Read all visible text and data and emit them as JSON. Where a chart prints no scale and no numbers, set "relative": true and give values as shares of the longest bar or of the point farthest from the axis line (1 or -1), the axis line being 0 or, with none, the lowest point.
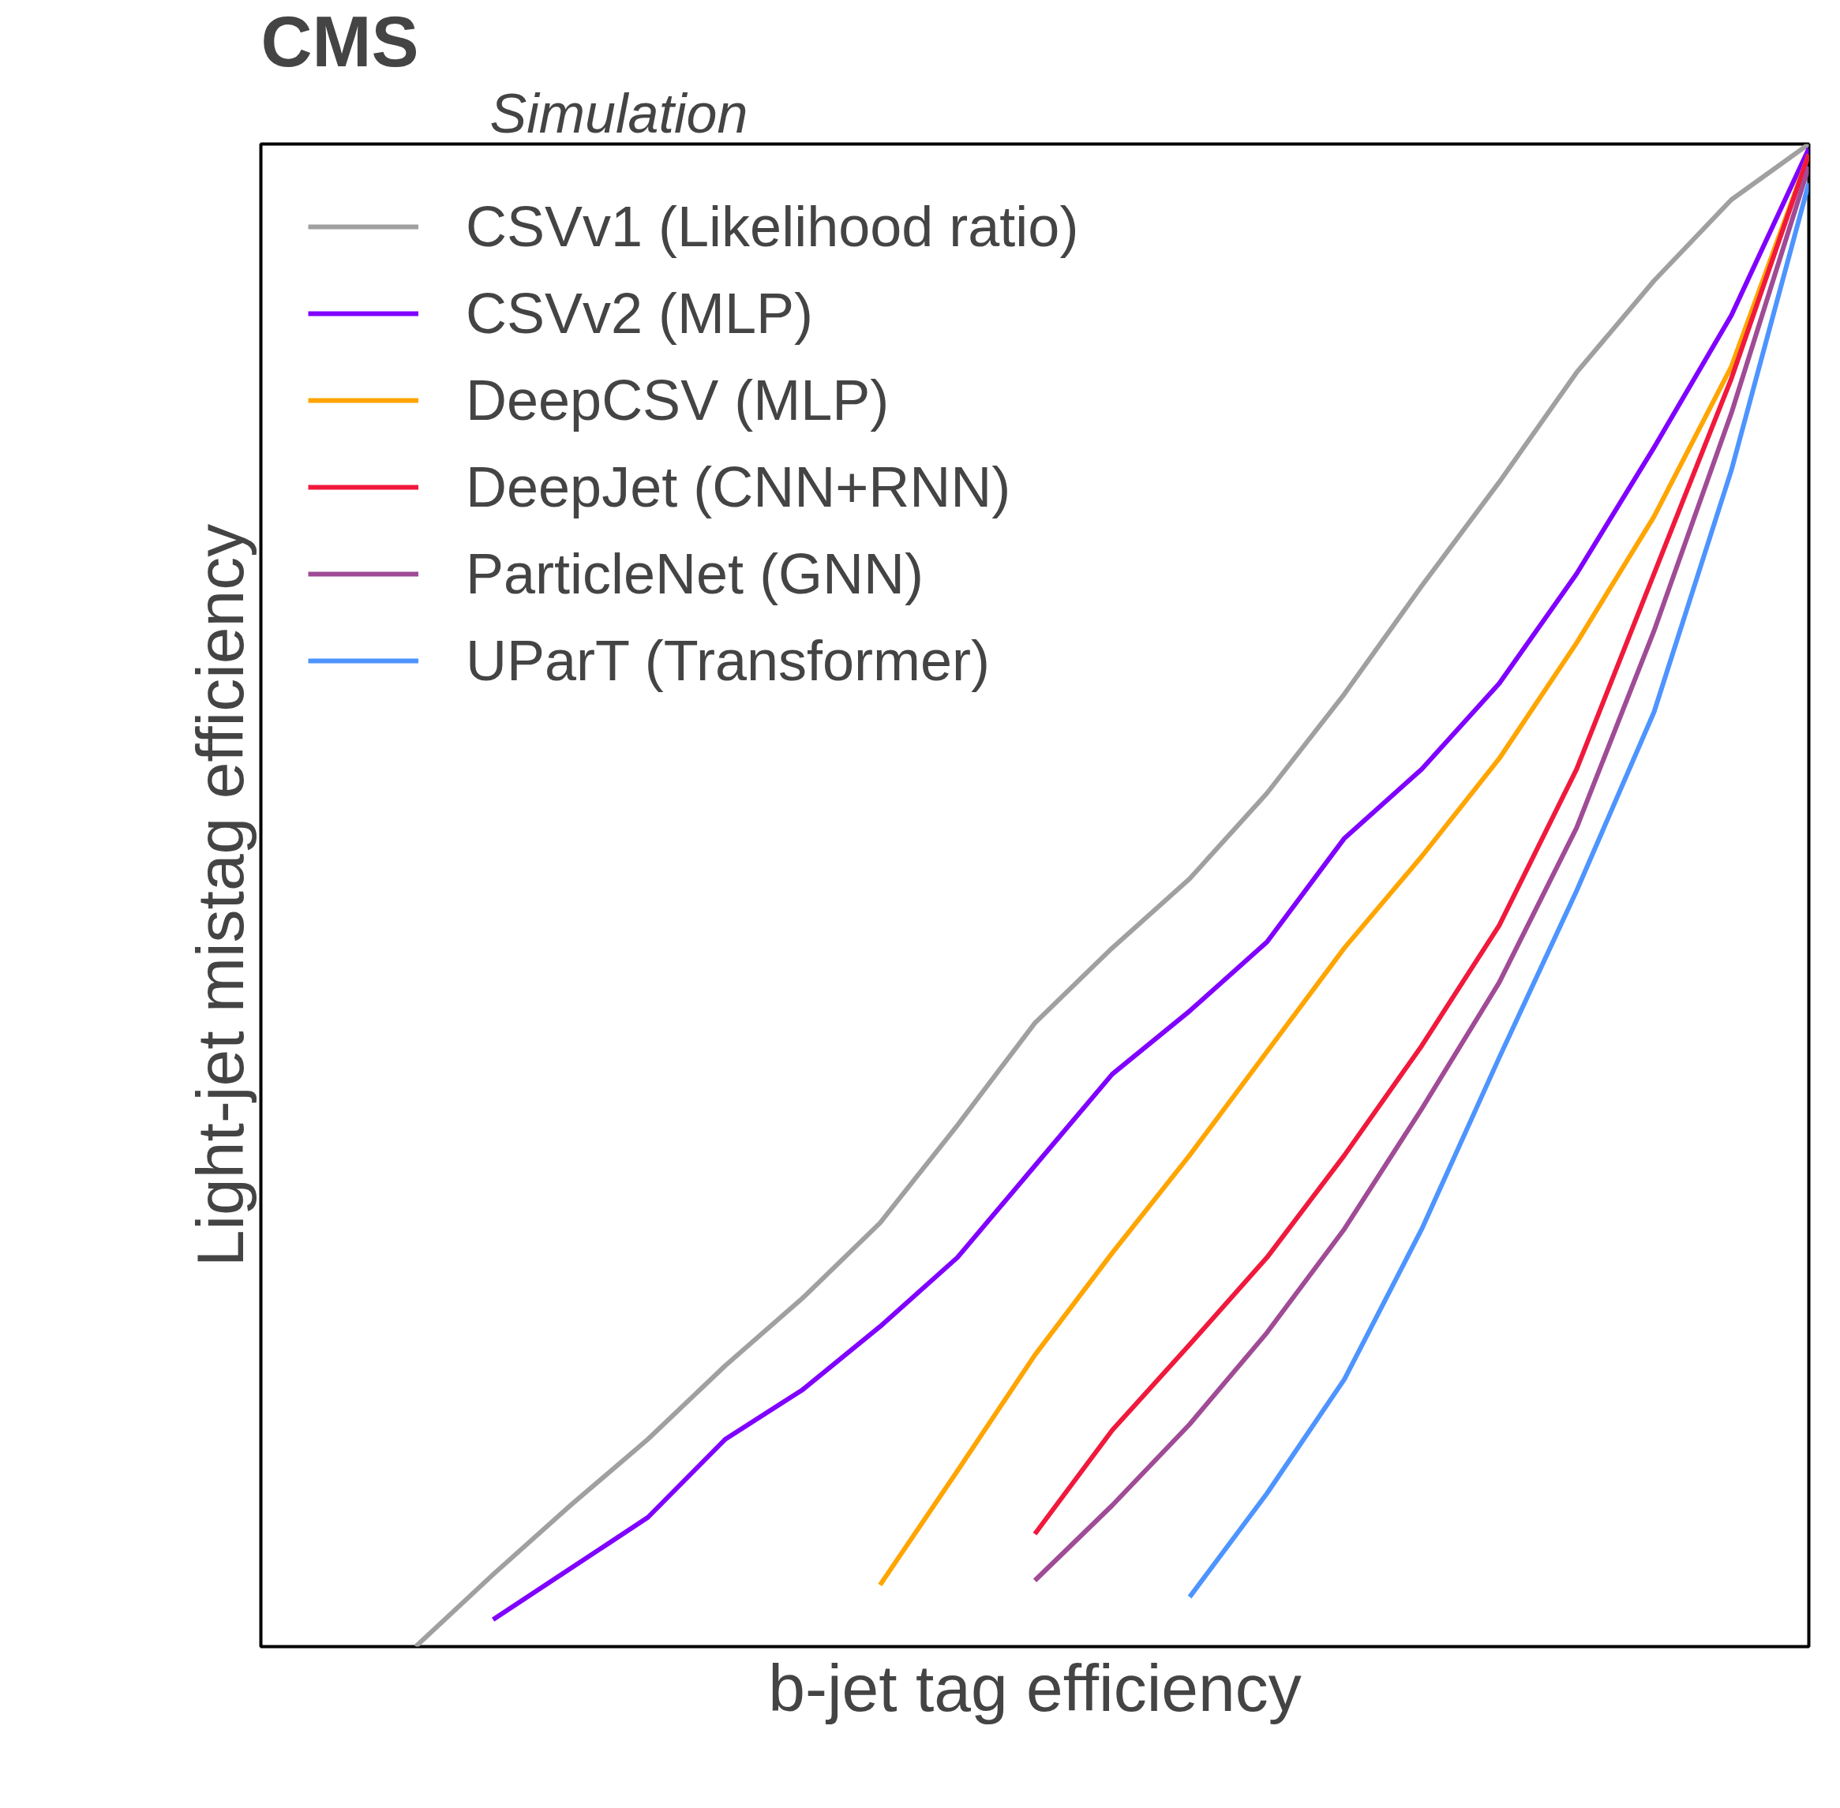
{
  "chart_data": {
    "type": "line",
    "title": "CMS",
    "subtitle": "Simulation",
    "xlabel": "b-jet tag efficiency",
    "ylabel": "Light-jet mistag efficiency",
    "relative": true,
    "legend": "top left",
    "categories": [
      null,
      null,
      null,
      null,
      null,
      null,
      null,
      null,
      null,
      null,
      null,
      null,
      null,
      null,
      null,
      null,
      null,
      null,
      null,
      null,
      null
    ],
    "series": [
      {
        "name": "CSVv1 (Likelihood ratio)",
        "color": "#a0a0a0",
        "values": [
          null,
          null,
          0.0,
          0.048,
          0.094,
          0.138,
          0.187,
          0.232,
          0.282,
          0.347,
          0.415,
          0.465,
          0.511,
          0.568,
          0.634,
          0.706,
          0.775,
          0.848,
          0.909,
          0.963,
          1.0
        ]
      },
      {
        "name": "CSVv2 (MLP)",
        "color": "#8000ff",
        "values": [
          null,
          null,
          null,
          0.018,
          0.052,
          0.086,
          0.138,
          0.171,
          0.213,
          0.259,
          0.32,
          0.381,
          0.423,
          0.469,
          0.538,
          0.584,
          0.641,
          0.714,
          0.798,
          0.886,
          0.997
        ]
      },
      {
        "name": "DeepCSV (MLP)",
        "color": "#ffa500",
        "values": [
          null,
          null,
          null,
          null,
          null,
          null,
          null,
          null,
          0.041,
          0.117,
          0.194,
          0.262,
          0.327,
          0.396,
          0.465,
          0.526,
          0.591,
          0.668,
          0.752,
          0.852,
          0.993
        ]
      },
      {
        "name": "DeepJet (CNN+RNN)",
        "color": "#f0193c",
        "values": [
          null,
          null,
          null,
          null,
          null,
          null,
          null,
          null,
          null,
          null,
          0.075,
          0.144,
          0.201,
          0.259,
          0.327,
          0.4,
          0.48,
          0.584,
          0.714,
          0.844,
          0.993
        ]
      },
      {
        "name": "ParticleNet (GNN)",
        "color": "#a04b96",
        "values": [
          null,
          null,
          null,
          null,
          null,
          null,
          null,
          null,
          null,
          null,
          0.044,
          0.094,
          0.148,
          0.209,
          0.278,
          0.358,
          0.442,
          0.545,
          0.676,
          0.821,
          0.985
        ]
      },
      {
        "name": "UParT (Transformer)",
        "color": "#4d94ff",
        "values": [
          null,
          null,
          null,
          null,
          null,
          null,
          null,
          null,
          null,
          null,
          null,
          null,
          0.033,
          0.102,
          0.178,
          0.278,
          0.392,
          0.503,
          0.622,
          0.783,
          0.974
        ]
      }
    ]
  }
}
